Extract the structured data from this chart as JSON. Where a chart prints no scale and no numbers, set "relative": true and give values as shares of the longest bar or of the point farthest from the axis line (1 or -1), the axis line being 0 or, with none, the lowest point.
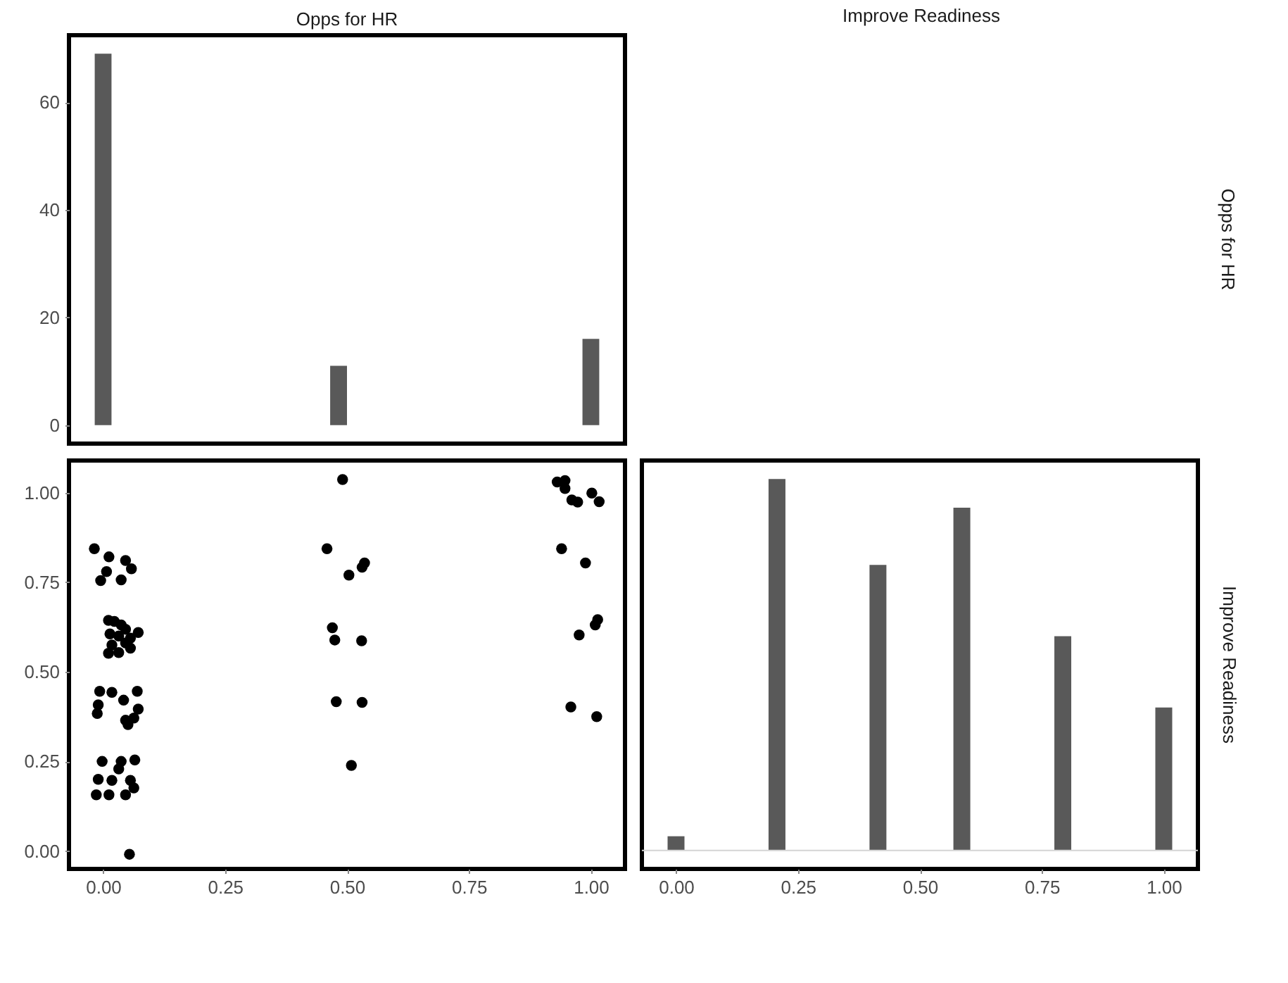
{
  "chart_data": [
    {
      "type": "histogram",
      "title": "Opps for HR",
      "y2label": "Opps for HR",
      "color": "#595959",
      "bins": [
        -0.0172,
        0.0172,
        0.0517,
        0.0862,
        0.1207,
        0.1552,
        0.1897,
        0.2241,
        0.2586,
        0.2931,
        0.3276,
        0.3621,
        0.3966,
        0.431,
        0.4655,
        0.5,
        0.5345,
        0.569,
        0.6034,
        0.6379,
        0.6724,
        0.7069,
        0.7414,
        0.7759,
        0.8103,
        0.8448,
        0.8793,
        0.9138,
        0.9483,
        0.9828,
        1.0172
      ],
      "values": [
        69,
        0,
        0,
        0,
        0,
        0,
        0,
        0,
        0,
        0,
        0,
        0,
        0,
        0,
        11,
        0,
        0,
        0,
        0,
        0,
        0,
        0,
        0,
        0,
        0,
        0,
        0,
        0,
        0,
        16
      ],
      "xlim": [
        -0.07,
        1.07
      ],
      "ylim": [
        -3.45,
        72.45
      ],
      "yticks": [
        0,
        20,
        40,
        60
      ],
      "tick_labels": "y",
      "grid": false
    },
    {
      "type": "scatter",
      "color": "#000000",
      "marker": "circle",
      "x": [
        -0.018,
        0.012,
        0.046,
        0.058,
        0.007,
        -0.005,
        0.037,
        0.011,
        0.023,
        0.037,
        0.046,
        0.072,
        0.014,
        0.032,
        0.056,
        0.018,
        0.046,
        0.011,
        0.032,
        0.056,
        -0.007,
        0.018,
        0.042,
        0.07,
        0.072,
        -0.01,
        -0.012,
        0.046,
        0.063,
        0.051,
        -0.002,
        0.037,
        0.065,
        -0.01,
        0.018,
        0.056,
        0.063,
        -0.014,
        0.012,
        0.046,
        0.032,
        0.054,
        0.491,
        0.459,
        0.536,
        0.531,
        0.504,
        0.47,
        0.475,
        0.53,
        0.478,
        0.531,
        0.509,
        0.931,
        0.947,
        0.947,
        0.961,
        0.973,
        1.002,
        1.017,
        0.94,
        0.989,
        1.014,
        1.009,
        0.976,
        0.959,
        1.012
      ],
      "values": [
        0.844,
        0.821,
        0.811,
        0.788,
        0.78,
        0.755,
        0.757,
        0.644,
        0.641,
        0.631,
        0.619,
        0.61,
        0.606,
        0.6,
        0.594,
        0.575,
        0.581,
        0.552,
        0.554,
        0.566,
        0.446,
        0.443,
        0.421,
        0.446,
        0.396,
        0.408,
        0.384,
        0.365,
        0.371,
        0.353,
        0.25,
        0.25,
        0.254,
        0.2,
        0.197,
        0.197,
        0.176,
        0.157,
        0.157,
        0.157,
        0.229,
        -0.009,
        1.037,
        0.844,
        0.804,
        0.792,
        0.77,
        0.623,
        0.589,
        0.587,
        0.417,
        0.415,
        0.239,
        1.03,
        1.034,
        1.012,
        0.98,
        0.974,
        0.999,
        0.975,
        0.844,
        0.804,
        0.646,
        0.631,
        0.603,
        0.402,
        0.375
      ],
      "xlim": [
        -0.07,
        1.07
      ],
      "ylim": [
        -0.05,
        1.09
      ],
      "xticks": [
        {
          "value": 0,
          "label": "0.00"
        },
        {
          "value": 0.25,
          "label": "0.25"
        },
        {
          "value": 0.5,
          "label": "0.50"
        },
        {
          "value": 0.75,
          "label": "0.75"
        },
        {
          "value": 1,
          "label": "1.00"
        }
      ],
      "yticks": [
        {
          "value": 0,
          "label": "0.00"
        },
        {
          "value": 0.25,
          "label": "0.25"
        },
        {
          "value": 0.5,
          "label": "0.50"
        },
        {
          "value": 0.75,
          "label": "0.75"
        },
        {
          "value": 1,
          "label": "1.00"
        }
      ],
      "grid": false
    },
    {
      "type": "bar",
      "title": "Improve Readiness",
      "y2label": "Improve Readiness",
      "color": "#595959",
      "relative": true,
      "x": [
        0,
        0.207,
        0.414,
        0.586,
        0.793,
        1
      ],
      "values": [
        0.038,
        1,
        0.769,
        0.923,
        0.577,
        0.385
      ],
      "xlim": [
        -0.07,
        1.07
      ],
      "xticks": [
        {
          "value": 0,
          "label": "0.00"
        },
        {
          "value": 0.25,
          "label": "0.25"
        },
        {
          "value": 0.5,
          "label": "0.50"
        },
        {
          "value": 0.75,
          "label": "0.75"
        },
        {
          "value": 1,
          "label": "1.00"
        }
      ],
      "tick_labels": "x",
      "grid": false
    }
  ]
}
